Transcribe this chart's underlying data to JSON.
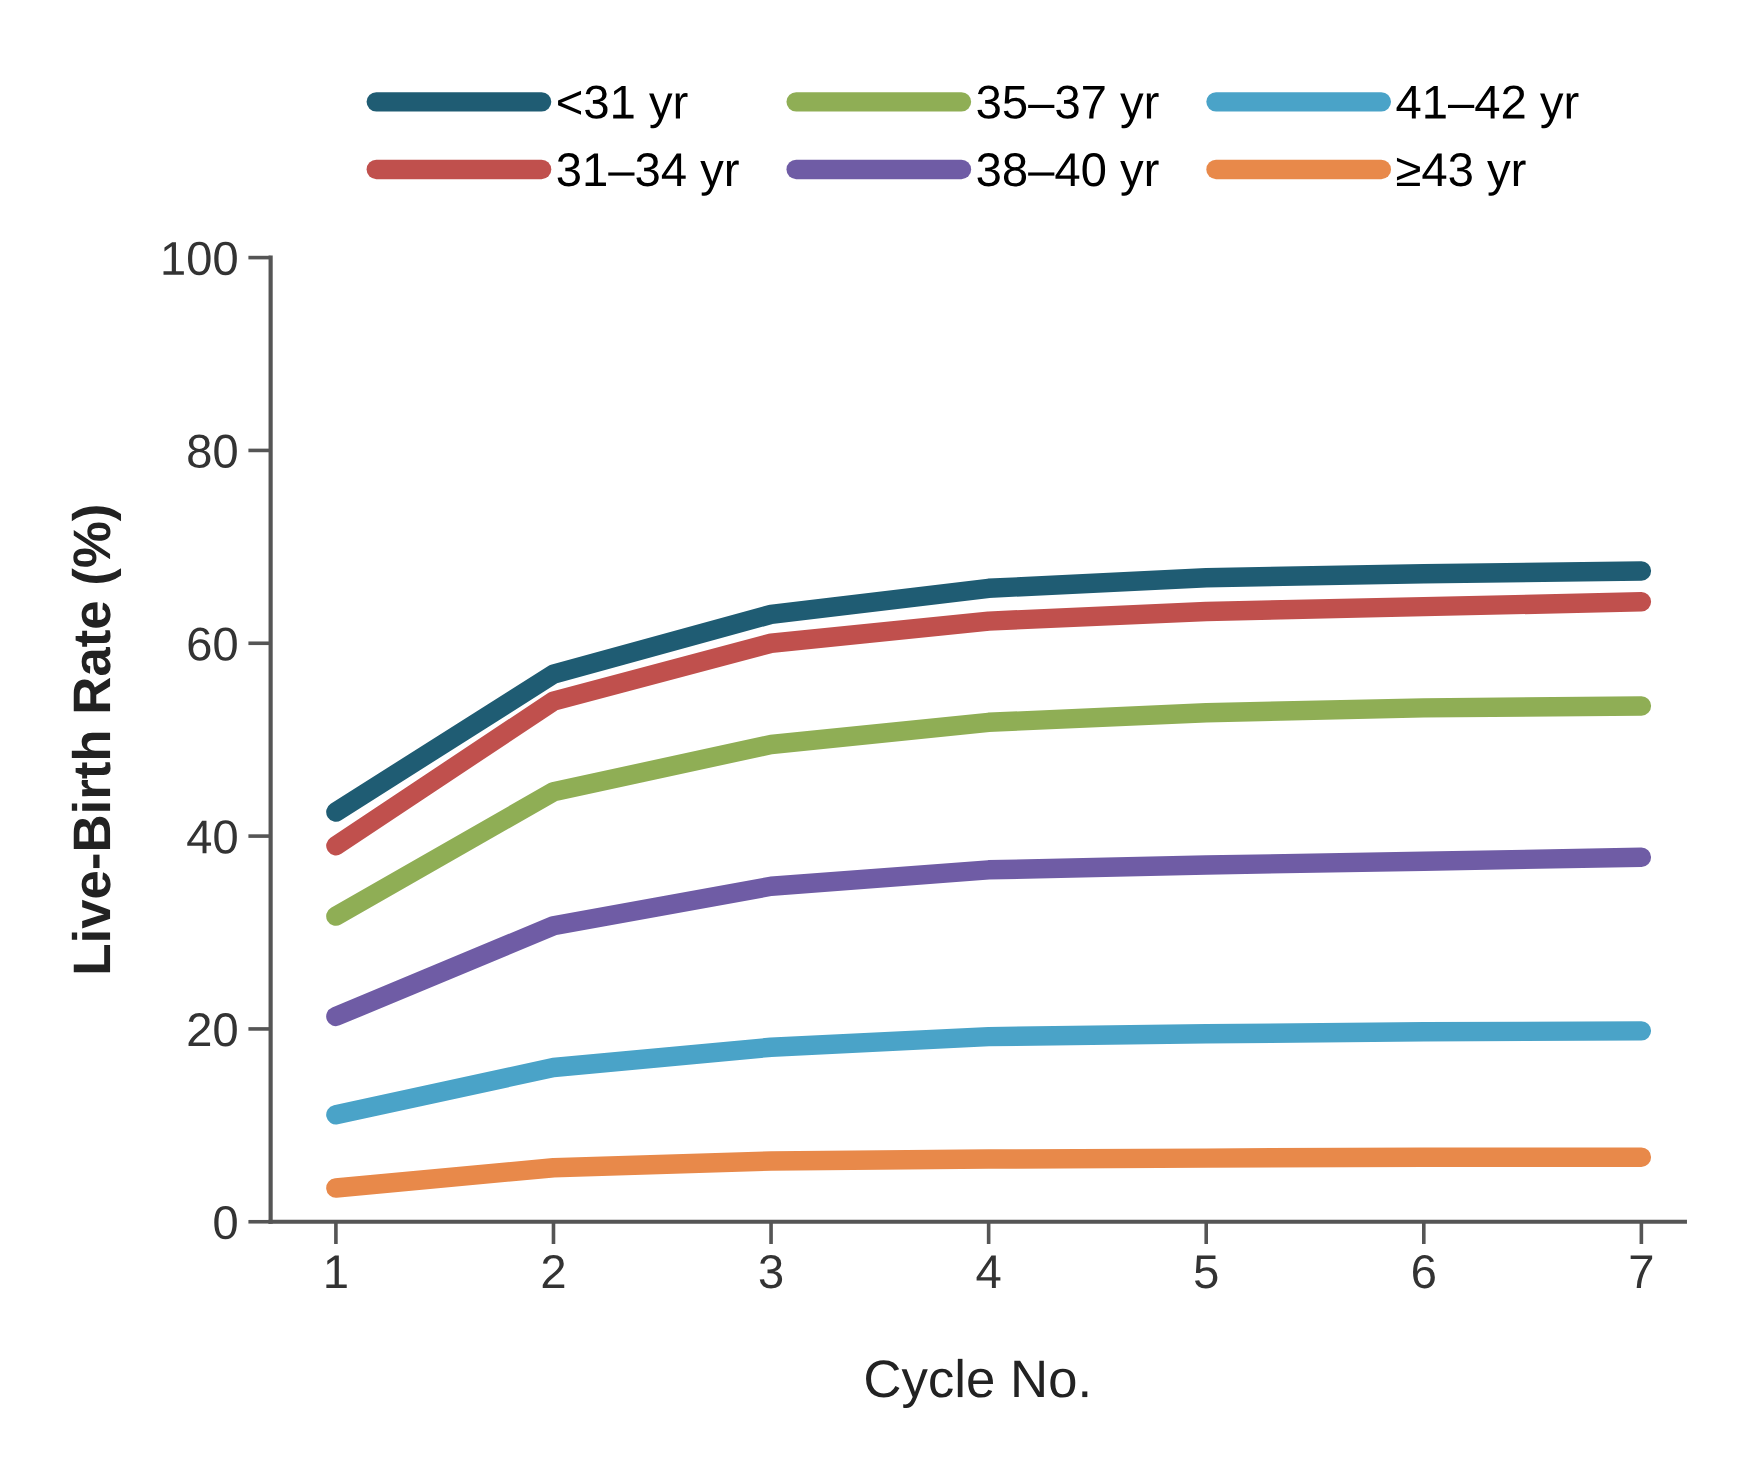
{
  "chart_data": {
    "type": "line",
    "xlabel": "Cycle No.",
    "ylabel": "Live-Birth Rate (%)",
    "x": [
      1,
      2,
      3,
      4,
      5,
      6,
      7
    ],
    "xlim": [
      0.7,
      7.2
    ],
    "xticks": [
      1,
      2,
      3,
      4,
      5,
      6,
      7
    ],
    "ylim": [
      0,
      100
    ],
    "yticks": [
      0,
      20,
      40,
      60,
      80,
      100
    ],
    "grid": false,
    "legend": "top",
    "marker": "none",
    "line_style": "solid",
    "series": [
      {
        "name": "<31 yr",
        "color": "#1f5c73",
        "values": [
          42.5,
          56.8,
          63.0,
          65.7,
          66.8,
          67.2,
          67.5
        ]
      },
      {
        "name": "31–34 yr",
        "color": "#c0504d",
        "values": [
          39.0,
          54.0,
          60.0,
          62.3,
          63.3,
          63.8,
          64.3
        ]
      },
      {
        "name": "35–37 yr",
        "color": "#8fae55",
        "values": [
          31.7,
          44.6,
          49.5,
          51.8,
          52.8,
          53.3,
          53.5
        ]
      },
      {
        "name": "38–40 yr",
        "color": "#6f5ca5",
        "values": [
          21.3,
          30.7,
          34.8,
          36.5,
          37.0,
          37.4,
          37.8
        ]
      },
      {
        "name": "41–42 yr",
        "color": "#4aa3c8",
        "values": [
          11.1,
          16.0,
          18.1,
          19.2,
          19.5,
          19.7,
          19.8
        ]
      },
      {
        "name": "≥43 yr",
        "color": "#e8894a",
        "values": [
          3.5,
          5.6,
          6.3,
          6.5,
          6.6,
          6.7,
          6.7
        ]
      }
    ]
  }
}
